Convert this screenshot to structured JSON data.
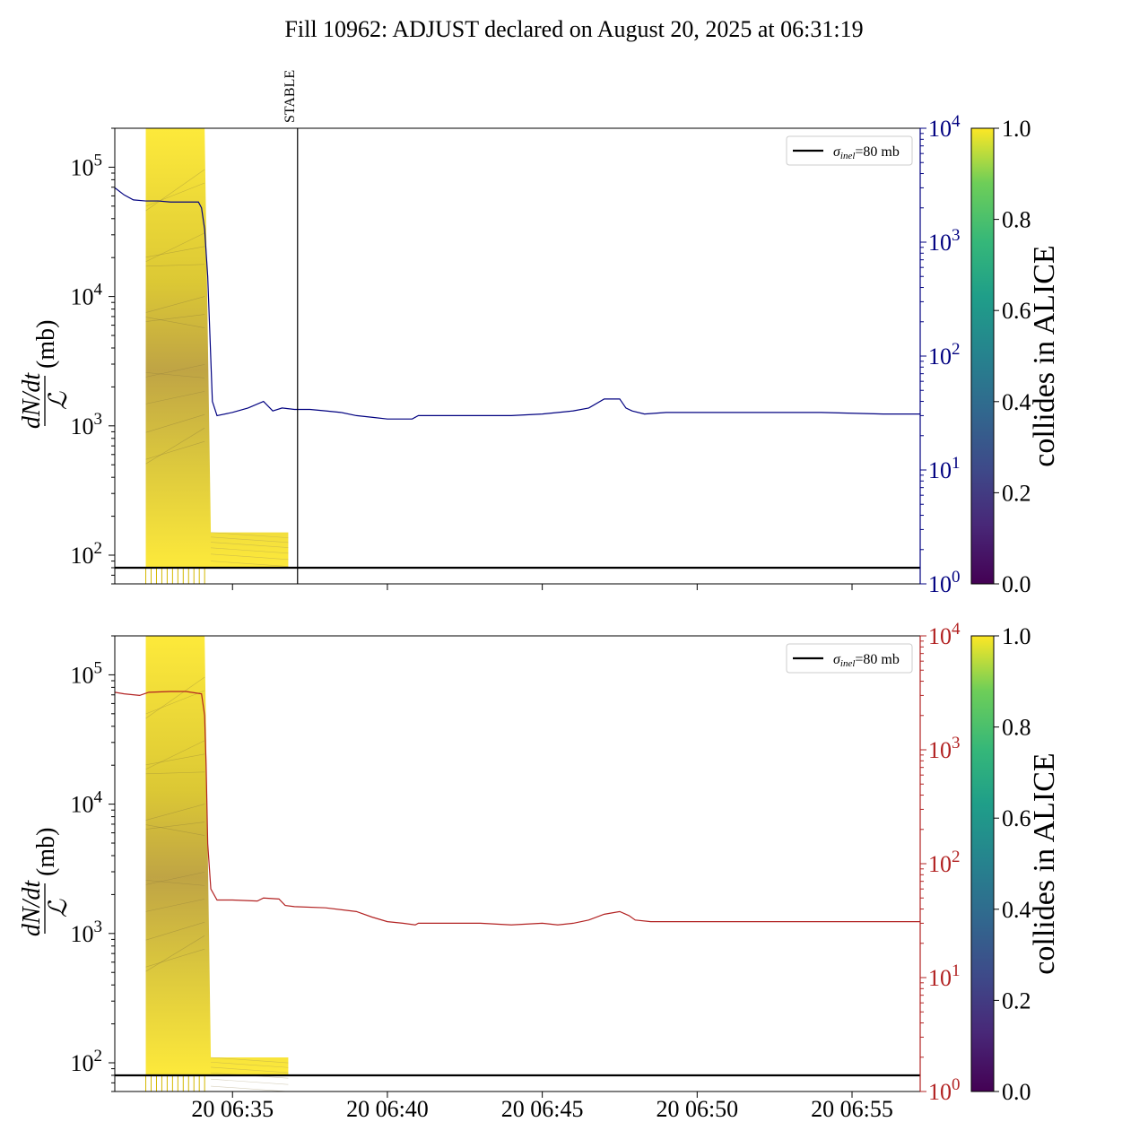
{
  "title": "Fill 10962: ADJUST declared on August 20, 2025 at 06:31:19",
  "chart_data": [
    {
      "type": "line",
      "panel": "top",
      "title": "",
      "xlabel": "",
      "ylabel_num": "dN/dt",
      "ylabel_den": "ℒ",
      "ylabel_unit": "(mb)",
      "y_scale": "log",
      "ylim": [
        60,
        200000
      ],
      "y_ticks": [
        100,
        1000,
        10000,
        100000
      ],
      "y_tick_labels": [
        "10^2",
        "10^3",
        "10^4",
        "10^5"
      ],
      "x_range_min": [
        31.2,
        57.2
      ],
      "x_ticks_min": [
        35,
        40,
        45,
        50,
        55
      ],
      "x_tick_labels": [],
      "y2_scale": "log",
      "y2lim": [
        1,
        10000
      ],
      "y2_ticks": [
        1,
        10,
        100,
        1000,
        10000
      ],
      "y2_tick_labels": [
        "10^0",
        "10^1",
        "10^2",
        "10^3",
        "10^4"
      ],
      "y2_color": "#000080",
      "annotation": {
        "label": "STABLE",
        "x_min": 37.1
      },
      "hline": {
        "y": 80,
        "label_base": "σ",
        "label_sub": "inel",
        "label_rest": "=80 mb"
      },
      "legend_loc": "upper right",
      "grid": false,
      "bunch_band": {
        "x_start": 32.2,
        "x_end": 34.1,
        "drop_end": 34.3,
        "tail_end": 36.8,
        "high_y": 200000,
        "low_y": 80,
        "tail_top": 150
      },
      "series_y2": {
        "name": "",
        "color": "#000080",
        "x": [
          31.2,
          31.5,
          31.8,
          32.2,
          32.6,
          33.0,
          33.5,
          33.9,
          34.0,
          34.1,
          34.2,
          34.35,
          34.5,
          35.0,
          35.5,
          36.0,
          36.3,
          36.6,
          37.0,
          37.5,
          38.0,
          38.5,
          39.0,
          39.5,
          40.0,
          40.5,
          40.8,
          41.0,
          42.0,
          43.0,
          44.0,
          45.0,
          46.0,
          46.5,
          47.0,
          47.5,
          47.7,
          47.9,
          48.3,
          49.0,
          50.0,
          52.0,
          54.0,
          56.0,
          57.2
        ],
        "y": [
          3000,
          2600,
          2350,
          2300,
          2300,
          2250,
          2250,
          2250,
          2000,
          1300,
          500,
          40,
          30,
          32,
          35,
          40,
          33,
          35,
          34,
          34,
          33,
          32,
          30,
          29,
          28,
          28,
          28,
          30,
          30,
          30,
          30,
          31,
          33,
          35,
          42,
          42,
          35,
          33,
          31,
          32,
          32,
          32,
          32,
          31,
          31
        ]
      }
    },
    {
      "type": "line",
      "panel": "bottom",
      "title": "",
      "xlabel": "",
      "ylabel_num": "dN/dt",
      "ylabel_den": "ℒ",
      "ylabel_unit": "(mb)",
      "y_scale": "log",
      "ylim": [
        60,
        200000
      ],
      "y_ticks": [
        100,
        1000,
        10000,
        100000
      ],
      "y_tick_labels": [
        "10^2",
        "10^3",
        "10^4",
        "10^5"
      ],
      "x_range_min": [
        31.2,
        57.2
      ],
      "x_ticks_min": [
        35,
        40,
        45,
        50,
        55
      ],
      "x_tick_labels": [
        "20 06:35",
        "20 06:40",
        "20 06:45",
        "20 06:50",
        "20 06:55"
      ],
      "y2_scale": "log",
      "y2lim": [
        1,
        10000
      ],
      "y2_ticks": [
        1,
        10,
        100,
        1000,
        10000
      ],
      "y2_tick_labels": [
        "10^0",
        "10^1",
        "10^2",
        "10^3",
        "10^4"
      ],
      "y2_color": "#b22222",
      "hline": {
        "y": 80,
        "label_base": "σ",
        "label_sub": "inel",
        "label_rest": "=80 mb"
      },
      "legend_loc": "upper right",
      "grid": false,
      "bunch_band": {
        "x_start": 32.2,
        "x_end": 34.1,
        "drop_end": 34.3,
        "tail_end": 36.8,
        "high_y": 200000,
        "low_y": 80,
        "tail_top": 110
      },
      "series_y2": {
        "name": "",
        "color": "#b22222",
        "x": [
          31.2,
          31.5,
          32.0,
          32.3,
          33.0,
          33.5,
          34.0,
          34.1,
          34.15,
          34.2,
          34.3,
          34.5,
          35.0,
          35.8,
          36.0,
          36.5,
          36.7,
          37.0,
          38.0,
          39.0,
          39.5,
          40.0,
          40.5,
          40.9,
          41.0,
          41.5,
          42.0,
          43.0,
          44.0,
          45.0,
          45.5,
          46.0,
          46.5,
          47.0,
          47.5,
          47.8,
          48.0,
          48.5,
          49.0,
          50.0,
          52.0,
          54.0,
          56.0,
          57.2
        ],
        "y": [
          3200,
          3100,
          3000,
          3200,
          3250,
          3250,
          3100,
          2000,
          700,
          150,
          60,
          48,
          48,
          47,
          50,
          49,
          43,
          42,
          41,
          38,
          34,
          31,
          30,
          29,
          30,
          30,
          30,
          30,
          29,
          30,
          29,
          30,
          32,
          36,
          38,
          35,
          32,
          31,
          31,
          31,
          31,
          31,
          31,
          31
        ]
      }
    }
  ],
  "colorbar": {
    "label": "collides in ALICE",
    "colormap": "viridis",
    "range": [
      0.0,
      1.0
    ],
    "ticks": [
      "0.0",
      "0.2",
      "0.4",
      "0.6",
      "0.8",
      "1.0"
    ]
  }
}
